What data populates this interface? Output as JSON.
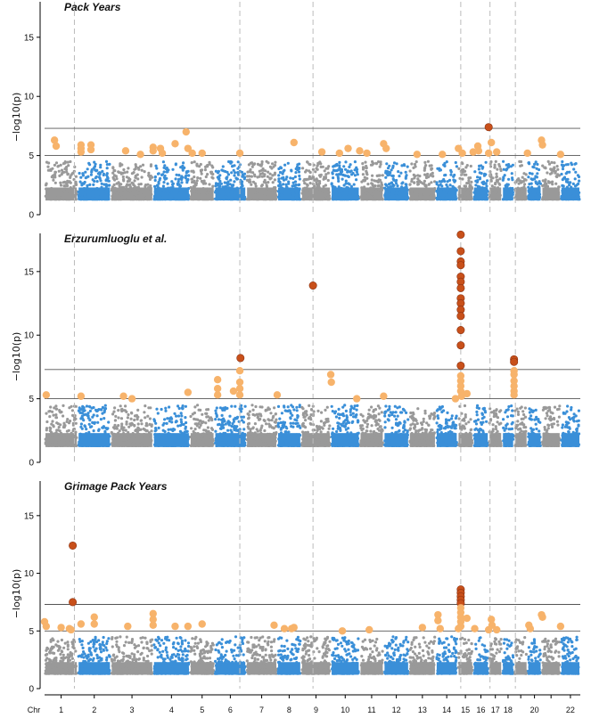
{
  "chart_data": {
    "type": "scatter",
    "subtype": "manhattan",
    "ylabel": "−log10(p)",
    "xlabel_prefix": "Chr",
    "chromosome_labels": [
      "1",
      "2",
      "3",
      "4",
      "5",
      "6",
      "7",
      "8",
      "9",
      "10",
      "11",
      "12",
      "13",
      "14",
      "15",
      "16",
      "17",
      "18",
      "20",
      "22"
    ],
    "chromosomes": [
      1,
      2,
      3,
      4,
      5,
      6,
      7,
      8,
      9,
      10,
      11,
      12,
      13,
      14,
      15,
      16,
      17,
      18,
      19,
      20,
      21,
      22
    ],
    "threshold_lines": [
      7.3,
      5
    ],
    "colors": {
      "odd_chr": "#999999",
      "even_chr": "#3a8fd8",
      "suggestive": "#f7b36b",
      "genome_wide": "#c8501a",
      "marker_lines": "#bbbbbb",
      "threshold_line": "#555555"
    },
    "panels": [
      {
        "title": "Pack Years",
        "ylim": [
          0,
          18
        ],
        "yticks": [
          0,
          5,
          10,
          15
        ],
        "vlines": [
          1.9,
          6.8,
          9.4,
          15.2,
          17.1,
          19.1
        ],
        "hits": [
          {
            "x": 1.3,
            "y": 6.3
          },
          {
            "x": 1.35,
            "y": 5.8
          },
          {
            "x": 2.1,
            "y": 5.9
          },
          {
            "x": 2.1,
            "y": 5.6
          },
          {
            "x": 2.1,
            "y": 5.3
          },
          {
            "x": 2.4,
            "y": 5.9
          },
          {
            "x": 2.4,
            "y": 5.5
          },
          {
            "x": 3.35,
            "y": 5.4
          },
          {
            "x": 3.7,
            "y": 5.1
          },
          {
            "x": 4.0,
            "y": 5.7
          },
          {
            "x": 4.0,
            "y": 5.4
          },
          {
            "x": 4.2,
            "y": 5.6
          },
          {
            "x": 4.25,
            "y": 5.2
          },
          {
            "x": 4.6,
            "y": 6.0
          },
          {
            "x": 4.9,
            "y": 7.0
          },
          {
            "x": 4.95,
            "y": 5.6
          },
          {
            "x": 5.1,
            "y": 5.2
          },
          {
            "x": 5.5,
            "y": 5.2
          },
          {
            "x": 6.8,
            "y": 5.2
          },
          {
            "x": 8.7,
            "y": 6.1
          },
          {
            "x": 9.7,
            "y": 5.3
          },
          {
            "x": 10.3,
            "y": 5.2
          },
          {
            "x": 10.6,
            "y": 5.6
          },
          {
            "x": 11.0,
            "y": 5.4
          },
          {
            "x": 11.3,
            "y": 5.2
          },
          {
            "x": 12.0,
            "y": 6.0
          },
          {
            "x": 12.1,
            "y": 5.6
          },
          {
            "x": 13.3,
            "y": 5.1
          },
          {
            "x": 14.3,
            "y": 5.1
          },
          {
            "x": 15.05,
            "y": 5.6
          },
          {
            "x": 15.3,
            "y": 5.2
          },
          {
            "x": 16.0,
            "y": 5.3
          },
          {
            "x": 16.3,
            "y": 5.8
          },
          {
            "x": 16.35,
            "y": 5.4
          },
          {
            "x": 17.0,
            "y": 5.2
          },
          {
            "x": 17.0,
            "y": 7.4,
            "sig": true
          },
          {
            "x": 17.2,
            "y": 6.1
          },
          {
            "x": 17.6,
            "y": 5.3
          },
          {
            "x": 20.0,
            "y": 5.2
          },
          {
            "x": 21.0,
            "y": 6.3
          },
          {
            "x": 21.05,
            "y": 5.9
          },
          {
            "x": 22.0,
            "y": 5.1
          }
        ]
      },
      {
        "title": "Erzurumluoglu et al.",
        "ylim": [
          0,
          18
        ],
        "yticks": [
          0,
          5,
          10,
          15
        ],
        "vlines": [
          1.9,
          6.8,
          9.4,
          15.2,
          17.1,
          19.1
        ],
        "hits": [
          {
            "x": 1.05,
            "y": 5.3
          },
          {
            "x": 2.1,
            "y": 5.2
          },
          {
            "x": 3.3,
            "y": 5.2
          },
          {
            "x": 3.5,
            "y": 5.0
          },
          {
            "x": 4.95,
            "y": 5.5
          },
          {
            "x": 6.1,
            "y": 6.5
          },
          {
            "x": 6.1,
            "y": 5.8
          },
          {
            "x": 6.1,
            "y": 5.3
          },
          {
            "x": 6.6,
            "y": 5.6
          },
          {
            "x": 6.8,
            "y": 7.2
          },
          {
            "x": 6.8,
            "y": 6.3
          },
          {
            "x": 6.8,
            "y": 5.8
          },
          {
            "x": 6.8,
            "y": 5.3
          },
          {
            "x": 6.82,
            "y": 8.2,
            "sig": true
          },
          {
            "x": 8.0,
            "y": 5.3
          },
          {
            "x": 9.4,
            "y": 13.9,
            "sig": true
          },
          {
            "x": 10.0,
            "y": 6.9
          },
          {
            "x": 10.02,
            "y": 6.3
          },
          {
            "x": 10.9,
            "y": 5.0
          },
          {
            "x": 12.0,
            "y": 5.2
          },
          {
            "x": 14.9,
            "y": 5.0
          },
          {
            "x": 15.2,
            "y": 17.9,
            "sig": true
          },
          {
            "x": 15.2,
            "y": 16.6,
            "sig": true
          },
          {
            "x": 15.2,
            "y": 15.8,
            "sig": true
          },
          {
            "x": 15.2,
            "y": 15.5,
            "sig": true
          },
          {
            "x": 15.2,
            "y": 14.6,
            "sig": true
          },
          {
            "x": 15.2,
            "y": 14.2,
            "sig": true
          },
          {
            "x": 15.2,
            "y": 13.7,
            "sig": true
          },
          {
            "x": 15.2,
            "y": 12.9,
            "sig": true
          },
          {
            "x": 15.2,
            "y": 12.5,
            "sig": true
          },
          {
            "x": 15.2,
            "y": 12.0,
            "sig": true
          },
          {
            "x": 15.2,
            "y": 11.5,
            "sig": true
          },
          {
            "x": 15.2,
            "y": 10.4,
            "sig": true
          },
          {
            "x": 15.2,
            "y": 9.2,
            "sig": true
          },
          {
            "x": 15.2,
            "y": 7.6,
            "sig": true
          },
          {
            "x": 15.2,
            "y": 6.8
          },
          {
            "x": 15.2,
            "y": 6.4
          },
          {
            "x": 15.2,
            "y": 6.0
          },
          {
            "x": 15.2,
            "y": 5.6
          },
          {
            "x": 15.25,
            "y": 5.2
          },
          {
            "x": 15.6,
            "y": 5.4
          },
          {
            "x": 19.0,
            "y": 8.1,
            "sig": true
          },
          {
            "x": 19.0,
            "y": 7.9,
            "sig": true
          },
          {
            "x": 19.0,
            "y": 7.2
          },
          {
            "x": 19.0,
            "y": 6.9
          },
          {
            "x": 19.0,
            "y": 6.4
          },
          {
            "x": 19.0,
            "y": 6.0
          },
          {
            "x": 19.0,
            "y": 5.6
          },
          {
            "x": 19.0,
            "y": 5.3
          }
        ]
      },
      {
        "title": "Grimage Pack Years",
        "ylim": [
          0,
          18
        ],
        "yticks": [
          0,
          5,
          10,
          15
        ],
        "vlines": [
          1.9,
          6.8,
          9.4,
          15.2,
          17.1,
          19.1
        ],
        "hits": [
          {
            "x": 0.75,
            "y": 5.2
          },
          {
            "x": 1.0,
            "y": 5.8
          },
          {
            "x": 1.05,
            "y": 5.4
          },
          {
            "x": 1.5,
            "y": 5.3
          },
          {
            "x": 1.8,
            "y": 5.1
          },
          {
            "x": 1.85,
            "y": 12.4,
            "sig": true
          },
          {
            "x": 1.85,
            "y": 7.5,
            "sig": true
          },
          {
            "x": 2.1,
            "y": 5.6
          },
          {
            "x": 2.5,
            "y": 6.2
          },
          {
            "x": 2.5,
            "y": 5.6
          },
          {
            "x": 3.4,
            "y": 5.4
          },
          {
            "x": 4.0,
            "y": 6.5
          },
          {
            "x": 4.0,
            "y": 6.0
          },
          {
            "x": 4.0,
            "y": 5.5
          },
          {
            "x": 4.6,
            "y": 5.4
          },
          {
            "x": 4.95,
            "y": 5.4
          },
          {
            "x": 5.5,
            "y": 5.6
          },
          {
            "x": 7.9,
            "y": 5.5
          },
          {
            "x": 8.3,
            "y": 5.2
          },
          {
            "x": 8.6,
            "y": 5.2
          },
          {
            "x": 8.7,
            "y": 5.3
          },
          {
            "x": 10.4,
            "y": 5.0
          },
          {
            "x": 11.4,
            "y": 5.1
          },
          {
            "x": 13.5,
            "y": 5.3
          },
          {
            "x": 14.1,
            "y": 6.4
          },
          {
            "x": 14.1,
            "y": 5.9
          },
          {
            "x": 14.2,
            "y": 5.2
          },
          {
            "x": 15.2,
            "y": 8.6,
            "sig": true
          },
          {
            "x": 15.2,
            "y": 8.3,
            "sig": true
          },
          {
            "x": 15.2,
            "y": 8.0,
            "sig": true
          },
          {
            "x": 15.2,
            "y": 7.7,
            "sig": true
          },
          {
            "x": 15.2,
            "y": 7.4,
            "sig": true
          },
          {
            "x": 15.2,
            "y": 7.0
          },
          {
            "x": 15.2,
            "y": 6.6
          },
          {
            "x": 15.2,
            "y": 6.2
          },
          {
            "x": 15.2,
            "y": 5.8
          },
          {
            "x": 15.2,
            "y": 5.4
          },
          {
            "x": 15.05,
            "y": 5.2
          },
          {
            "x": 15.6,
            "y": 6.1
          },
          {
            "x": 16.1,
            "y": 5.2
          },
          {
            "x": 17.0,
            "y": 5.1
          },
          {
            "x": 17.2,
            "y": 6.0
          },
          {
            "x": 17.25,
            "y": 5.5
          },
          {
            "x": 17.6,
            "y": 5.1
          },
          {
            "x": 20.1,
            "y": 5.5
          },
          {
            "x": 20.2,
            "y": 5.2
          },
          {
            "x": 21.0,
            "y": 6.4
          },
          {
            "x": 21.05,
            "y": 6.2
          },
          {
            "x": 22.0,
            "y": 5.4
          }
        ]
      }
    ]
  }
}
